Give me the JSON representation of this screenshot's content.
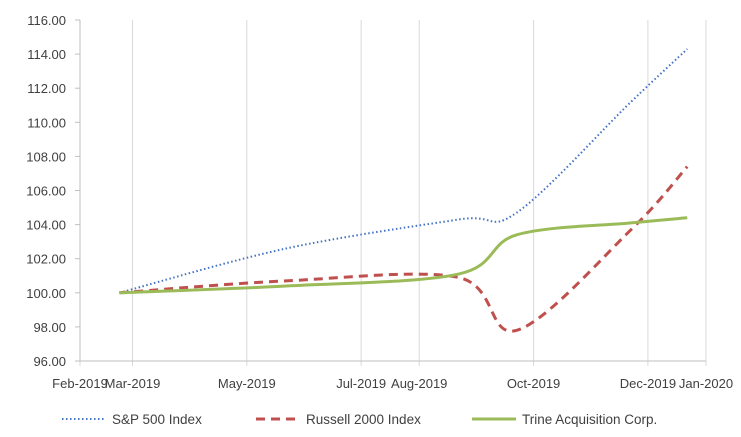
{
  "chart_data": {
    "type": "line",
    "title": "",
    "xlabel": "",
    "ylabel": "",
    "x_axis": {
      "type": "date",
      "ticks": [
        "2019-02-01",
        "2019-03-01",
        "2019-05-01",
        "2019-07-01",
        "2019-08-01",
        "2019-10-01",
        "2019-12-01",
        "2020-01-01"
      ],
      "tick_labels": [
        "Feb-2019",
        "Mar-2019",
        "May-2019",
        "Jul-2019",
        "Aug-2019",
        "Oct-2019",
        "Dec-2019",
        "Jan-2020"
      ]
    },
    "y_axis": {
      "ylim": [
        96,
        116
      ],
      "ticks": [
        96,
        98,
        100,
        102,
        104,
        106,
        108,
        110,
        112,
        114,
        116
      ],
      "tick_labels": [
        "96.00",
        "98.00",
        "100.00",
        "102.00",
        "104.00",
        "106.00",
        "108.00",
        "110.00",
        "112.00",
        "114.00",
        "116.00"
      ]
    },
    "grid": {
      "vertical": true,
      "horizontal": false
    },
    "legend": {
      "position": "bottom"
    },
    "x": [
      "2019-02-22",
      "2019-05-22",
      "2019-08-22",
      "2019-09-22",
      "2019-11-22",
      "2019-12-22"
    ],
    "series": [
      {
        "name": "S&P 500 Index",
        "color": "#4472C4",
        "style": "dotted",
        "values": [
          100.0,
          102.6,
          104.3,
          104.7,
          111.2,
          114.3
        ]
      },
      {
        "name": "Russell 2000 Index",
        "color": "#C0504D",
        "style": "dashed",
        "values": [
          100.0,
          100.7,
          100.9,
          97.8,
          103.7,
          107.4
        ]
      },
      {
        "name": "Trine Acquisition Corp.",
        "color": "#9BBB59",
        "style": "solid",
        "values": [
          100.0,
          100.4,
          101.1,
          103.4,
          104.1,
          104.4
        ]
      }
    ]
  }
}
